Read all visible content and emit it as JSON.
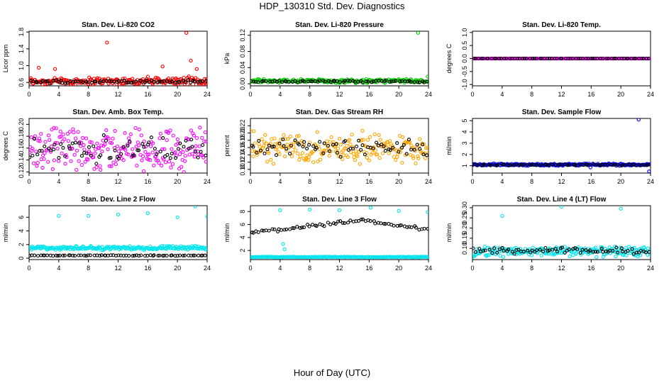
{
  "figure": {
    "title": "HDP_130310  Std. Dev. Diagnostics",
    "xlabel": "Hour of Day (UTC)",
    "x_ticks": [
      0,
      4,
      8,
      12,
      16,
      20,
      24
    ]
  },
  "chart_data": [
    {
      "type": "scatter",
      "title": "Stan. Dev. Li-820 CO2",
      "ylabel": "Licor ppm",
      "xlim": [
        0,
        24
      ],
      "ylim": [
        0.52,
        1.82
      ],
      "yticks": [
        0.6,
        1.0,
        1.4,
        1.8
      ],
      "ytick_labels": [
        "0.6",
        "1.0",
        "1.4",
        "1.8"
      ],
      "color": "#ff0000",
      "series": [
        {
          "name": "all",
          "color": "#ff0000",
          "base": 0.63,
          "spread": 0.12,
          "outliers": [
            [
              1.3,
              0.95
            ],
            [
              3.5,
              0.92
            ],
            [
              10.5,
              1.55
            ],
            [
              18.0,
              0.98
            ],
            [
              21.2,
              1.78
            ],
            [
              21.8,
              1.12
            ],
            [
              22.6,
              0.92
            ],
            [
              23.9,
              0.48
            ]
          ]
        },
        {
          "name": "mean",
          "color": "#000000",
          "base": 0.62,
          "spread": 0.05
        }
      ]
    },
    {
      "type": "scatter",
      "title": "Stan. Dev. Li-820 Pressure",
      "ylabel": "kPa",
      "xlim": [
        0,
        24
      ],
      "ylim": [
        -0.005,
        0.13
      ],
      "yticks": [
        0.0,
        0.04,
        0.08,
        0.12
      ],
      "ytick_labels": [
        "0.00",
        "0.04",
        "0.08",
        "0.12"
      ],
      "color": "#00cc00",
      "series": [
        {
          "name": "all",
          "color": "#00cc00",
          "base": 0.007,
          "spread": 0.006,
          "outliers": [
            [
              22.6,
              0.126
            ],
            [
              23.9,
              0.018
            ]
          ]
        },
        {
          "name": "mean",
          "color": "#000000",
          "base": 0.006,
          "spread": 0.003
        }
      ]
    },
    {
      "type": "scatter",
      "title": "Stan. Dev. Li-820 Temp.",
      "ylabel": "degrees C",
      "xlim": [
        0,
        24
      ],
      "ylim": [
        -1.05,
        1.05
      ],
      "yticks": [
        -1.0,
        -0.5,
        0.0,
        0.5,
        1.0
      ],
      "ytick_labels": [
        "-1.0",
        "-0.5",
        "0.0",
        "0.5",
        "1.0"
      ],
      "color": "#ff00ff",
      "series": [
        {
          "name": "all",
          "color": "#ff00ff",
          "base": 0.0,
          "spread": 0.0
        },
        {
          "name": "mean",
          "color": "#000000",
          "base": 0.0,
          "spread": 0.0
        }
      ]
    },
    {
      "type": "scatter",
      "title": "Stan. Dev. Amb. Box Temp.",
      "ylabel": "degrees C",
      "xlim": [
        0,
        24
      ],
      "ylim": [
        0.118,
        0.21
      ],
      "yticks": [
        0.12,
        0.14,
        0.16,
        0.18,
        0.2
      ],
      "ytick_labels": [
        "0.12",
        "0.14",
        "0.16",
        "0.18",
        "0.20"
      ],
      "color": "#ff00ff",
      "series": [
        {
          "name": "all",
          "color": "#ff00ff",
          "base": 0.158,
          "spread": 0.045
        },
        {
          "name": "mean",
          "color": "#000000",
          "base": 0.158,
          "spread": 0.03
        }
      ]
    },
    {
      "type": "scatter",
      "title": "Stan. Dev. Gas Stream RH",
      "ylabel": "percent",
      "xlim": [
        0,
        24
      ],
      "ylim": [
        0.09,
        0.24
      ],
      "yticks": [
        0.1,
        0.12,
        0.14,
        0.16,
        0.18,
        0.2,
        0.22
      ],
      "ytick_labels": [
        "0.10",
        "0.12",
        "0.14",
        "0.16",
        "0.18",
        "0.20",
        "0.22"
      ],
      "color": "#ffa500",
      "series": [
        {
          "name": "all",
          "color": "#ffa500",
          "base": 0.16,
          "spread": 0.05
        },
        {
          "name": "mean",
          "color": "#000000",
          "base": 0.16,
          "spread": 0.03
        }
      ]
    },
    {
      "type": "scatter",
      "title": "Stan. Dev. Sample Flow",
      "ylabel": "ml/min",
      "xlim": [
        0,
        24
      ],
      "ylim": [
        0.35,
        5.2
      ],
      "yticks": [
        1,
        2,
        3,
        4,
        5
      ],
      "ytick_labels": [
        "1",
        "2",
        "3",
        "4",
        "5"
      ],
      "color": "#0000ff",
      "series": [
        {
          "name": "all",
          "color": "#0000ff",
          "base": 1.1,
          "spread": 0.12,
          "outliers": [
            [
              22.4,
              5.1
            ],
            [
              23.8,
              0.5
            ],
            [
              15.9,
              0.85
            ]
          ]
        },
        {
          "name": "mean",
          "color": "#000000",
          "base": 1.08,
          "spread": 0.07
        }
      ]
    },
    {
      "type": "scatter",
      "title": "Stan. Dev. Line 2 Flow",
      "ylabel": "ml/min",
      "xlim": [
        0,
        24
      ],
      "ylim": [
        -0.2,
        7.7
      ],
      "yticks": [
        0,
        2,
        4,
        6
      ],
      "ytick_labels": [
        "0",
        "2",
        "4",
        "6"
      ],
      "color": "#00e5ee",
      "series": [
        {
          "name": "all",
          "color": "#00e5ee",
          "base": 1.5,
          "spread": 0.35,
          "outliers": [
            [
              4.0,
              6.2
            ],
            [
              8.0,
              6.2
            ],
            [
              12.0,
              6.4
            ],
            [
              16.0,
              6.6
            ],
            [
              20.0,
              6.0
            ],
            [
              22.4,
              7.6
            ],
            [
              24.0,
              6.1
            ]
          ]
        },
        {
          "name": "mean",
          "color": "#000000",
          "base": 0.4,
          "spread": 0.06
        }
      ]
    },
    {
      "type": "scatter",
      "title": "Stan. Dev. Line 3 Flow",
      "ylabel": "ml/min",
      "xlim": [
        0,
        24
      ],
      "ylim": [
        0.6,
        8.9
      ],
      "yticks": [
        2,
        4,
        6,
        8
      ],
      "ytick_labels": [
        "2",
        "4",
        "6",
        "8"
      ],
      "color": "#00e5ee",
      "series": [
        {
          "name": "all",
          "color": "#00e5ee",
          "base": 1.0,
          "spread": 0.06,
          "outliers": [
            [
              4.0,
              8.2
            ],
            [
              4.4,
              3.0
            ],
            [
              4.6,
              2.2
            ],
            [
              8.0,
              8.3
            ],
            [
              12.0,
              8.2
            ],
            [
              16.2,
              8.6
            ],
            [
              20.0,
              8.1
            ],
            [
              23.9,
              7.9
            ]
          ]
        },
        {
          "name": "mean",
          "color": "#000000",
          "curve": [
            [
              0,
              4.9
            ],
            [
              4,
              5.2
            ],
            [
              8,
              5.8
            ],
            [
              12,
              6.3
            ],
            [
              15,
              6.7
            ],
            [
              18,
              6.2
            ],
            [
              21,
              5.6
            ],
            [
              24,
              5.2
            ]
          ],
          "spread": 0.35
        }
      ]
    },
    {
      "type": "scatter",
      "title": "Stan. Dev. Line 4 (LT) Flow",
      "ylabel": "ml/min",
      "xlim": [
        0,
        24
      ],
      "ylim": [
        0.045,
        0.31
      ],
      "yticks": [
        0.1,
        0.15,
        0.2,
        0.25,
        0.3
      ],
      "ytick_labels": [
        "0.10",
        "0.15",
        "0.20",
        "0.25",
        "0.30"
      ],
      "color": "#00e5ee",
      "series": [
        {
          "name": "all",
          "color": "#00e5ee",
          "base": 0.085,
          "spread": 0.03,
          "outliers": [
            [
              4.0,
              0.26
            ],
            [
              12.0,
              0.305
            ],
            [
              20.0,
              0.295
            ]
          ]
        },
        {
          "name": "mean",
          "color": "#000000",
          "base": 0.088,
          "spread": 0.02
        }
      ]
    }
  ]
}
